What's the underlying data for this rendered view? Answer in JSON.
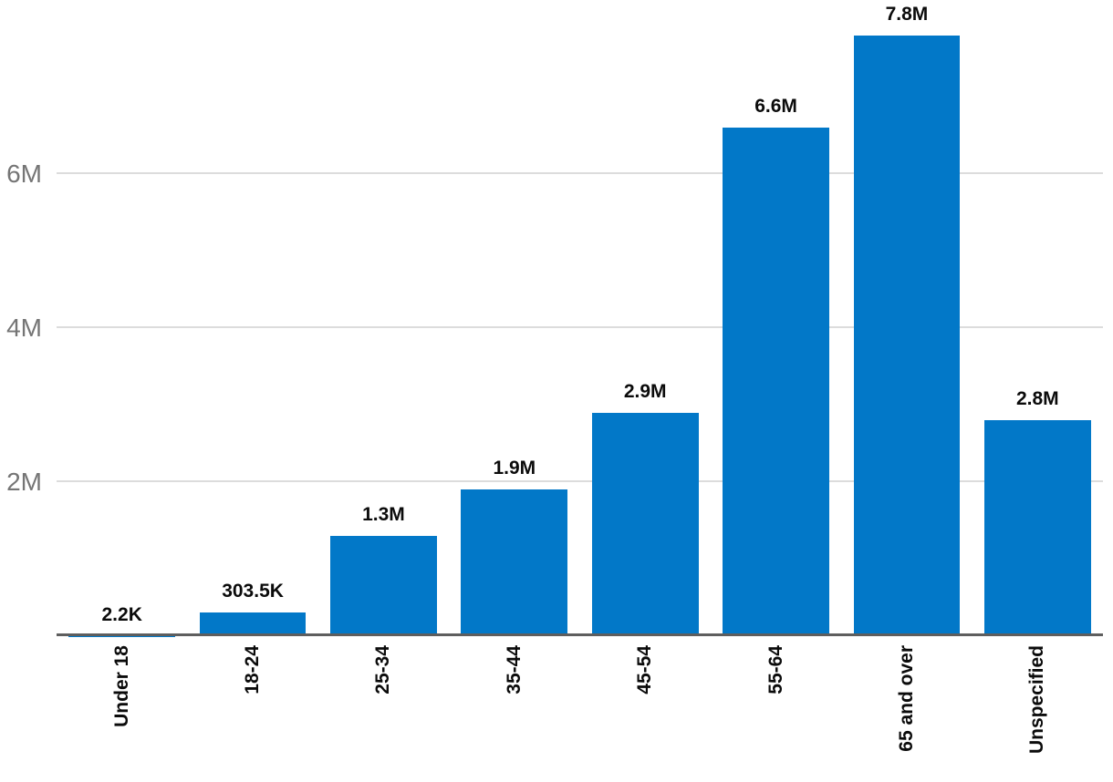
{
  "chart_data": {
    "type": "bar",
    "categories": [
      "Under 18",
      "18-24",
      "25-34",
      "35-44",
      "45-54",
      "55-64",
      "65 and over",
      "Unspecified"
    ],
    "values": [
      2200,
      303500,
      1300000,
      1900000,
      2900000,
      6600000,
      7800000,
      2800000
    ],
    "value_labels": [
      "2.2K",
      "303.5K",
      "1.3M",
      "1.9M",
      "2.9M",
      "6.6M",
      "7.8M",
      "2.8M"
    ],
    "y_ticks": [
      {
        "value": 2000000,
        "label": "2M"
      },
      {
        "value": 4000000,
        "label": "4M"
      },
      {
        "value": 6000000,
        "label": "6M"
      }
    ],
    "ylim": [
      0,
      8260000
    ],
    "grid": "horizontal",
    "legend": "none",
    "x_label_rotation_deg": -90,
    "colors": {
      "bar": "#0278C8",
      "grid_line": "#DCDCDC",
      "axis_line": "#5E5E5E",
      "y_tick_text": "#757575",
      "label_text": "#0B0B0B"
    }
  }
}
